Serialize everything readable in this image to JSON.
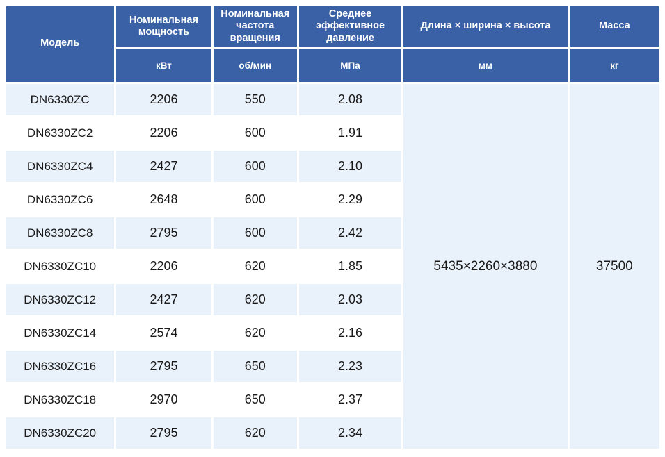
{
  "chart_data": {
    "type": "table",
    "columns": [
      {
        "title": "Модель",
        "unit": ""
      },
      {
        "title": "Номинальная мощность",
        "unit": "кВт"
      },
      {
        "title": "Номинальная частота вращения",
        "unit": "об/мин"
      },
      {
        "title": "Среднее эффективное давление",
        "unit": "МПа"
      },
      {
        "title": "Длина × ширина × высота",
        "unit": "мм"
      },
      {
        "title": "Масса",
        "unit": "кг"
      }
    ],
    "rows": [
      [
        "DN6330ZC",
        "2206",
        "550",
        "2.08"
      ],
      [
        "DN6330ZC2",
        "2206",
        "600",
        "1.91"
      ],
      [
        "DN6330ZC4",
        "2427",
        "600",
        "2.10"
      ],
      [
        "DN6330ZC6",
        "2648",
        "600",
        "2.29"
      ],
      [
        "DN6330ZC8",
        "2795",
        "600",
        "2.42"
      ],
      [
        "DN6330ZC10",
        "2206",
        "620",
        "1.85"
      ],
      [
        "DN6330ZC12",
        "2427",
        "620",
        "2.03"
      ],
      [
        "DN6330ZC14",
        "2574",
        "620",
        "2.16"
      ],
      [
        "DN6330ZC16",
        "2795",
        "650",
        "2.23"
      ],
      [
        "DN6330ZC18",
        "2970",
        "650",
        "2.37"
      ],
      [
        "DN6330ZC20",
        "2795",
        "620",
        "2.34"
      ]
    ],
    "merged": {
      "dimensions_mm": "5435×2260×3880",
      "mass_kg": "37500"
    },
    "layout": {
      "striped": true,
      "header_rows": 2
    }
  },
  "colors": {
    "header_bg": "#3a60a6",
    "header_text": "#ffffff",
    "row_alt_bg": "#e9f1fa",
    "row_bg": "#ffffff",
    "body_text": "#1a1a1a",
    "grid_gap": "#ffffff"
  }
}
